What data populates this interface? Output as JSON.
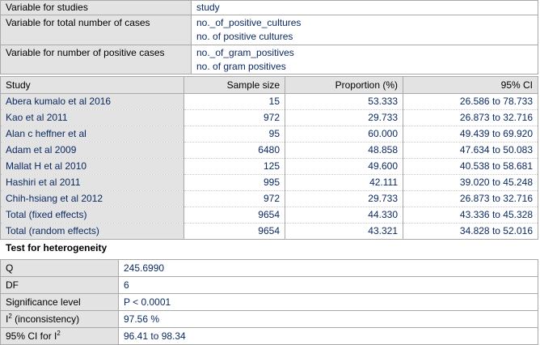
{
  "variables": [
    {
      "label": "Variable for studies",
      "values": [
        "study"
      ]
    },
    {
      "label": "Variable for total number of cases",
      "values": [
        "no._of_positive_cultures",
        "no. of positive cultures"
      ]
    },
    {
      "label": "Variable for number of positive cases",
      "values": [
        "no._of_gram_positives",
        "no. of gram positives"
      ]
    }
  ],
  "results": {
    "headers": {
      "study": "Study",
      "sample": "Sample size",
      "proportion": "Proportion (%)",
      "ci": "95% CI"
    },
    "rows": [
      {
        "study": "Abera kumalo et al 2016",
        "sample": "15",
        "proportion": "53.333",
        "ci": "26.586 to 78.733"
      },
      {
        "study": "Kao et al 2011",
        "sample": "972",
        "proportion": "29.733",
        "ci": "26.873 to 32.716"
      },
      {
        "study": "Alan c heffner et al",
        "sample": "95",
        "proportion": "60.000",
        "ci": "49.439 to 69.920"
      },
      {
        "study": "Adam et al 2009",
        "sample": "6480",
        "proportion": "48.858",
        "ci": "47.634 to 50.083"
      },
      {
        "study": "Mallat H et al 2010",
        "sample": "125",
        "proportion": "49.600",
        "ci": "40.538 to 58.681"
      },
      {
        "study": "Hashiri et al 2011",
        "sample": "995",
        "proportion": "42.111",
        "ci": "39.020 to 45.248"
      },
      {
        "study": "Chih-hsiang et al 2012",
        "sample": "972",
        "proportion": "29.733",
        "ci": "26.873 to 32.716"
      },
      {
        "study": "Total (fixed effects)",
        "sample": "9654",
        "proportion": "44.330",
        "ci": "43.336 to 45.328"
      },
      {
        "study": "Total (random effects)",
        "sample": "9654",
        "proportion": "43.321",
        "ci": "34.828 to 52.016"
      }
    ]
  },
  "heterogeneity": {
    "title": "Test for heterogeneity",
    "q_label": "Q",
    "q_value": "245.6990",
    "df_label": "DF",
    "df_value": "6",
    "sig_label": "Significance level",
    "sig_value": "P < 0.0001",
    "i2_label_sup": "2",
    "i2_label_rest": " (inconsistency)",
    "i2_value": "97.56 %",
    "ci_label_pre": "95% CI for I",
    "ci_label_sup": "2",
    "ci_value": "96.41 to 98.34"
  }
}
